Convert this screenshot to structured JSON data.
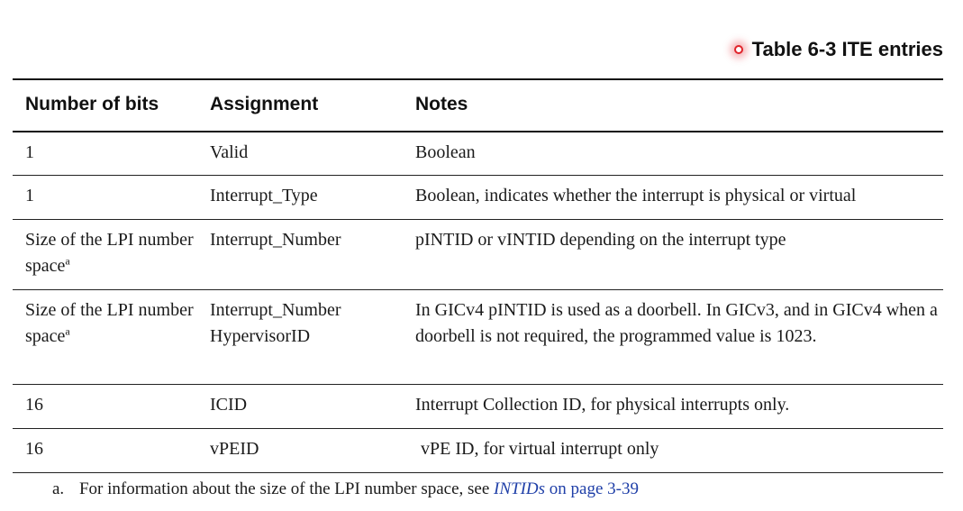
{
  "table_title": "Table 6-3 ITE entries",
  "icons": {
    "pointer": "red-circle-pointer-icon"
  },
  "colors": {
    "pointer": "#e0242a",
    "link": "#1f3fa8"
  },
  "headers": [
    "Number of bits",
    "Assignment",
    "Notes"
  ],
  "rows": [
    {
      "bits": "1",
      "assignment": "Valid",
      "assignment2": "",
      "notes": "Boolean",
      "footnote_mark": ""
    },
    {
      "bits": "1",
      "assignment": "Interrupt_Type",
      "assignment2": "",
      "notes": "Boolean, indicates whether the interrupt is physical or virtual",
      "footnote_mark": ""
    },
    {
      "bits": "Size of the LPI number space",
      "assignment": "Interrupt_Number",
      "assignment2": "",
      "notes": "pINTID or vINTID depending on the interrupt type",
      "footnote_mark": "a"
    },
    {
      "bits": "Size of the LPI number space",
      "assignment": "Interrupt_Number",
      "assignment2": "HypervisorID",
      "notes": "In GICv4 pINTID is used as a doorbell. In GICv3, and in GICv4 when a doorbell is not required, the programmed value is 1023.",
      "footnote_mark": "a"
    },
    {
      "bits": "16",
      "assignment": "ICID",
      "assignment2": "",
      "notes": "Interrupt Collection ID, for physical interrupts only.",
      "footnote_mark": ""
    },
    {
      "bits": "16",
      "assignment": "vPEID",
      "assignment2": "",
      "notes": "vPE ID, for virtual interrupt only",
      "footnote_mark": ""
    }
  ],
  "footnote": {
    "marker": "a.",
    "text": "For information about the size of the LPI number space, see ",
    "link_italic": "INTIDs",
    "link_rest": " on page 3-39"
  }
}
